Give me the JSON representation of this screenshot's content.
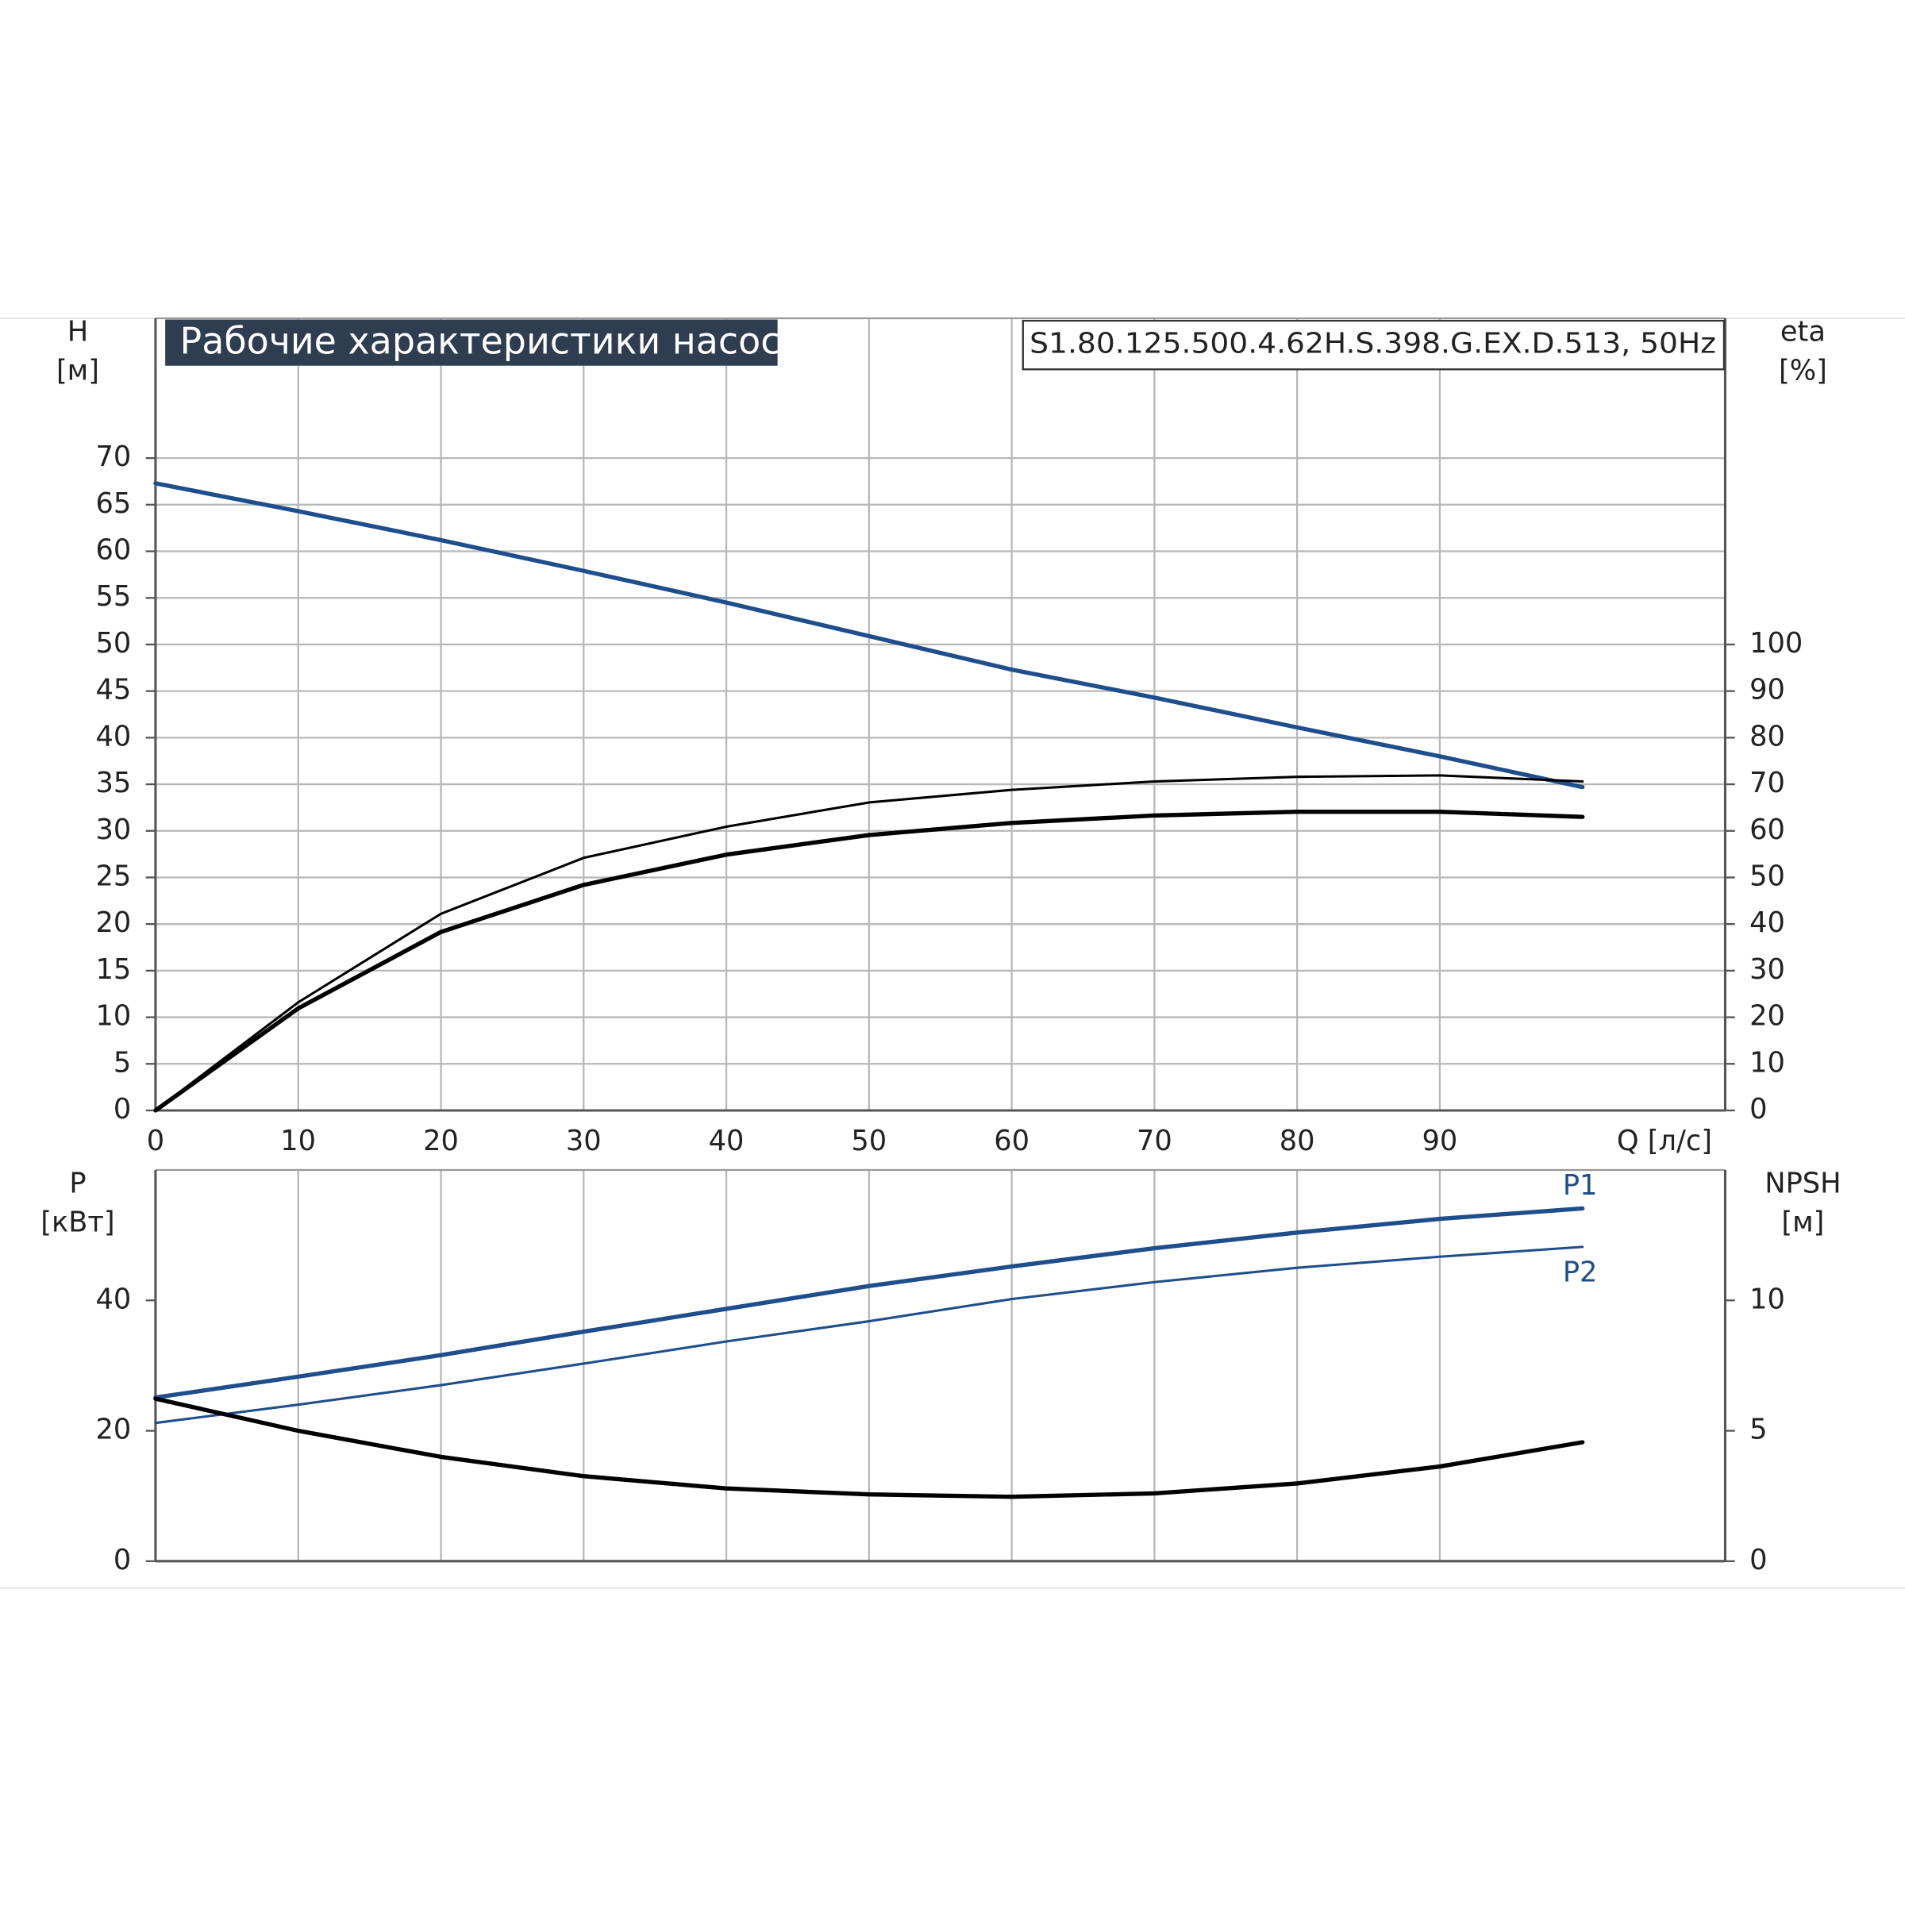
{
  "chart_data": [
    {
      "type": "line",
      "title": "Рабочие характеристики насоса",
      "subtitle": "S1.80.125.500.4.62H.S.398.G.EX.D.513, 50Hz",
      "y_label": "H",
      "y_unit": "[м]",
      "y2_label": "eta",
      "y2_unit": "[%]",
      "x_label": "Q [л/с]",
      "xlim": [
        0,
        110
      ],
      "ylim": [
        0,
        85
      ],
      "y2lim": [
        0,
        170
      ],
      "xticks": [
        0,
        10,
        20,
        30,
        40,
        50,
        60,
        70,
        80,
        90
      ],
      "yticks": [
        0,
        5,
        10,
        15,
        20,
        25,
        30,
        35,
        40,
        45,
        50,
        55,
        60,
        65,
        70
      ],
      "y2ticks": [
        0,
        10,
        20,
        30,
        40,
        50,
        60,
        70,
        80,
        90,
        100
      ],
      "grid": "both",
      "x": [
        0,
        10,
        20,
        30,
        40,
        50,
        60,
        70,
        80,
        90,
        100
      ],
      "series": [
        {
          "color": "#1f4e8c",
          "line_width": 3.5,
          "values": [
            67.3,
            64.3,
            61.2,
            57.9,
            54.5,
            50.9,
            47.3,
            44.3,
            41.1,
            38.0,
            34.7
          ]
        },
        {
          "color": "#000000",
          "line_width": 2,
          "axis": "y2",
          "values": [
            0,
            23.2,
            42.2,
            54.2,
            60.9,
            66.1,
            68.8,
            70.6,
            71.6,
            71.9,
            70.6
          ]
        },
        {
          "color": "#000000",
          "line_width": 3.5,
          "axis": "y2",
          "values": [
            0,
            21.9,
            38.3,
            48.4,
            54.9,
            59.1,
            61.7,
            63.3,
            64.1,
            64.1,
            63.0
          ]
        }
      ]
    },
    {
      "type": "line",
      "y_label": "P",
      "y_unit": "[кВт]",
      "y2_label": "NPSH",
      "y2_unit": "[м]",
      "xlim": [
        0,
        110
      ],
      "ylim": [
        0,
        60
      ],
      "y2lim": [
        0,
        15
      ],
      "xticks": [
        0,
        10,
        20,
        30,
        40,
        50,
        60,
        70,
        80,
        90
      ],
      "yticks": [
        0,
        20,
        40
      ],
      "y2ticks": [
        0,
        5,
        10
      ],
      "grid": "x",
      "x": [
        0,
        10,
        20,
        30,
        40,
        50,
        60,
        70,
        80,
        90,
        100
      ],
      "series": [
        {
          "name": "P1",
          "color": "#1f4e8c",
          "line_width": 3.5,
          "values": [
            25.1,
            28.3,
            31.6,
            35.2,
            38.7,
            42.2,
            45.2,
            48.0,
            50.4,
            52.5,
            54.1
          ]
        },
        {
          "name": "P2",
          "color": "#1f4e8c",
          "line_width": 2,
          "values": [
            21.2,
            24.0,
            27.0,
            30.3,
            33.7,
            36.8,
            40.2,
            42.8,
            45.0,
            46.7,
            48.2
          ]
        },
        {
          "color": "#000000",
          "line_width": 3.5,
          "axis": "y2",
          "values": [
            6.23,
            5.0,
            4.0,
            3.26,
            2.79,
            2.56,
            2.47,
            2.6,
            2.98,
            3.63,
            4.56
          ]
        }
      ]
    }
  ]
}
